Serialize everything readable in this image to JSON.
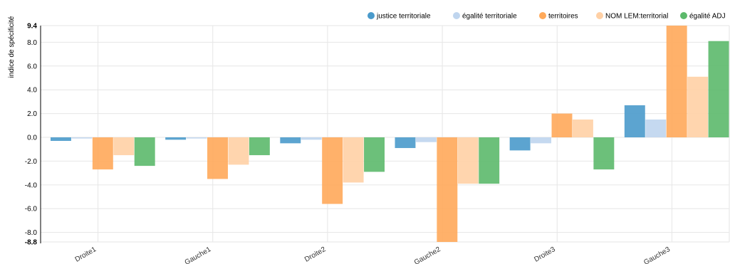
{
  "chart_data": {
    "type": "bar",
    "ylabel": "indice de spécificité",
    "ylim": [
      -8.8,
      9.4
    ],
    "yticks": [
      9.4,
      8.0,
      6.0,
      4.0,
      2.0,
      0.0,
      -2.0,
      -4.0,
      -6.0,
      -8.0,
      -8.8
    ],
    "ytick_labels": [
      "9.4",
      "8.0",
      "6.0",
      "4.0",
      "2.0",
      "0.0",
      "-2.0",
      "-4.0",
      "-6.0",
      "-8.0",
      "-8.8"
    ],
    "grid": true,
    "legend_position": "top-right",
    "categories": [
      "Droite1",
      "Gauche1",
      "Droite2",
      "Gauche2",
      "Droite3",
      "Gauche3"
    ],
    "series": [
      {
        "name": "justice territoriale",
        "color": "#4a9acb",
        "values": [
          -0.3,
          -0.2,
          -0.5,
          -0.9,
          -1.1,
          2.7
        ]
      },
      {
        "name": "égalité territoriale",
        "color": "#bfd5ee",
        "values": [
          -0.1,
          -0.1,
          -0.2,
          -0.4,
          -0.5,
          1.5
        ]
      },
      {
        "name": "territoires",
        "color": "#ffa95a",
        "values": [
          -2.7,
          -3.5,
          -5.6,
          -8.8,
          2.0,
          9.4
        ]
      },
      {
        "name": "NOM LEM:territorial",
        "color": "#ffd0a5",
        "values": [
          -1.5,
          -2.3,
          -3.8,
          -3.9,
          1.5,
          5.1
        ]
      },
      {
        "name": "égalité ADJ",
        "color": "#5cb96b",
        "values": [
          -2.4,
          -1.5,
          -2.9,
          -3.9,
          -2.7,
          8.1
        ]
      }
    ]
  }
}
